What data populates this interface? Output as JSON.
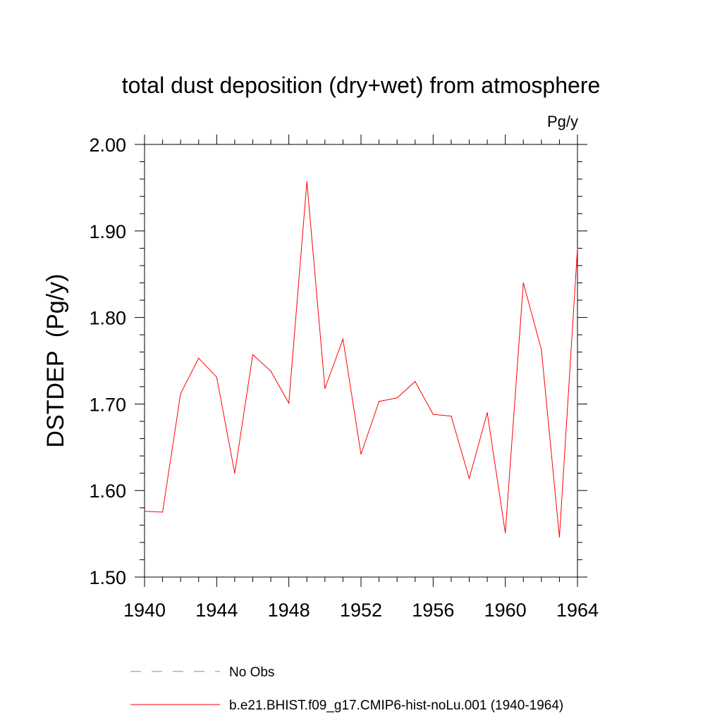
{
  "chart_data": {
    "type": "line",
    "title": "total dust deposition (dry+wet) from atmosphere",
    "units_label": "Pg/y",
    "ylabel": "DSTDEP  (Pg/y)",
    "xlabel": "",
    "xlim": [
      1940,
      1964
    ],
    "ylim": [
      1.5,
      2.0
    ],
    "x_ticks": [
      1940,
      1944,
      1948,
      1952,
      1956,
      1960,
      1964
    ],
    "x_tick_labels": [
      "1940",
      "1944",
      "1948",
      "1952",
      "1956",
      "1960",
      "1964"
    ],
    "y_ticks": [
      1.5,
      1.6,
      1.7,
      1.8,
      1.9,
      2.0
    ],
    "y_tick_labels": [
      "1.50",
      "1.60",
      "1.70",
      "1.80",
      "1.90",
      "2.00"
    ],
    "grid": false,
    "legend_position": "bottom",
    "x": [
      1940,
      1941,
      1942,
      1943,
      1944,
      1945,
      1946,
      1947,
      1948,
      1949,
      1950,
      1951,
      1952,
      1953,
      1954,
      1955,
      1956,
      1957,
      1958,
      1959,
      1960,
      1961,
      1962,
      1963,
      1964
    ],
    "series": [
      {
        "name": "b.e21.BHIST.f09_g17.CMIP6-hist-noLu.001 (1940-1964)",
        "color": "#ff0000",
        "style": "solid",
        "values": [
          1.576,
          1.575,
          1.712,
          1.753,
          1.731,
          1.62,
          1.757,
          1.738,
          1.701,
          1.957,
          1.718,
          1.775,
          1.642,
          1.703,
          1.707,
          1.726,
          1.688,
          1.686,
          1.614,
          1.69,
          1.551,
          1.84,
          1.763,
          1.546,
          1.88
        ]
      }
    ],
    "legend": [
      {
        "label": "No Obs",
        "color": "#8080c8",
        "style": "dashed"
      },
      {
        "label": "b.e21.BHIST.f09_g17.CMIP6-hist-noLu.001 (1940-1964)",
        "color": "#ff0000",
        "style": "solid"
      }
    ]
  }
}
